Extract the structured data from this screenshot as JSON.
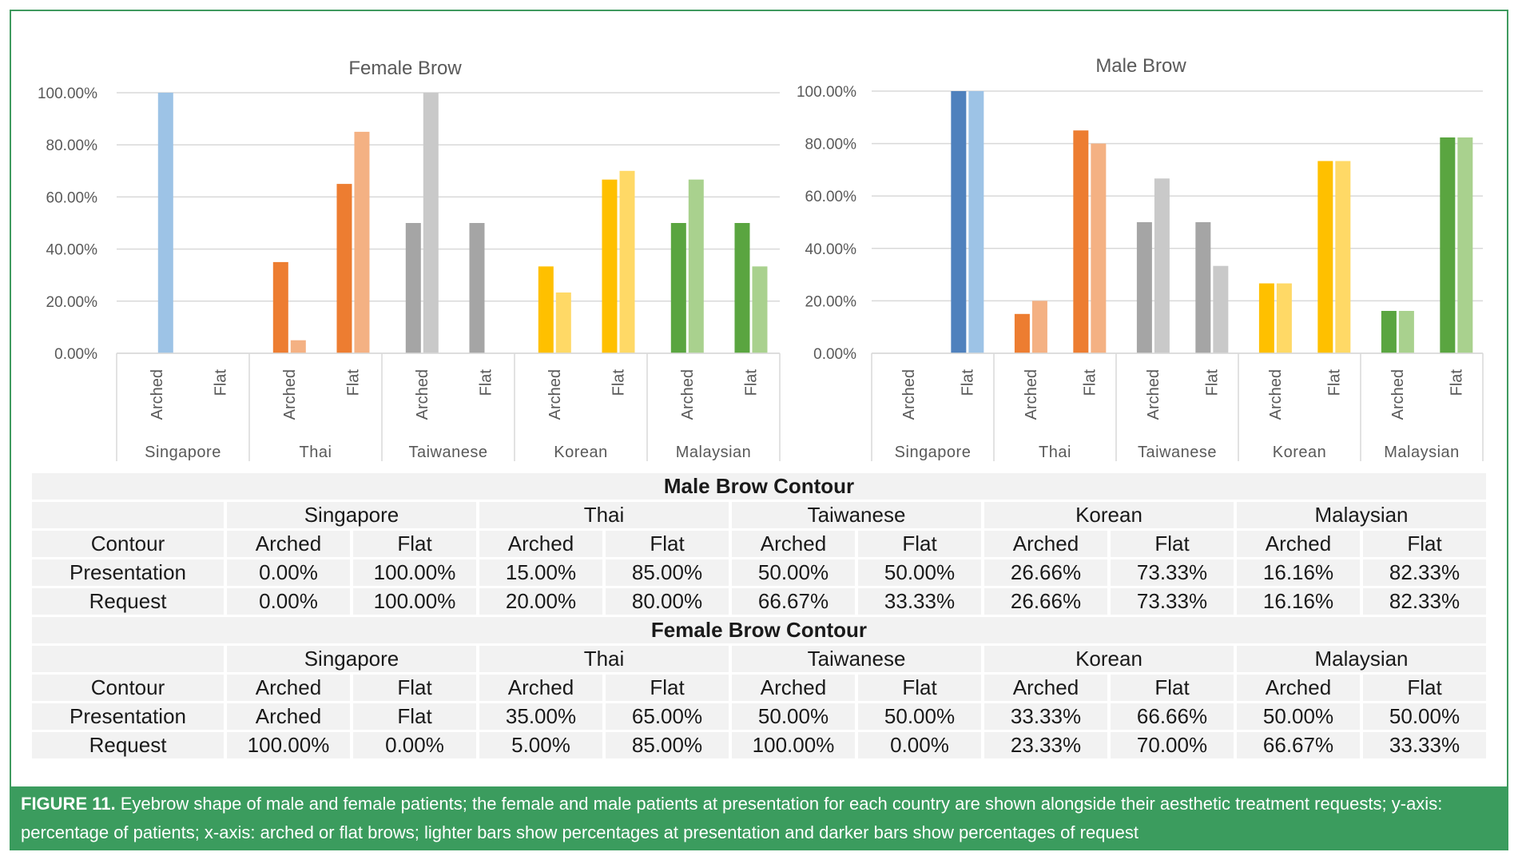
{
  "chart_data": [
    {
      "type": "bar",
      "title": "Female Brow",
      "ylim": [
        0,
        100
      ],
      "yticks": [
        "0.00%",
        "20.00%",
        "40.00%",
        "60.00%",
        "80.00%",
        "100.00%"
      ],
      "groups": [
        "Singapore",
        "Thai",
        "Taiwanese",
        "Korean",
        "Malaysian"
      ],
      "categories": [
        "Arched",
        "Flat"
      ],
      "series_order": [
        "Presentation",
        "Request"
      ],
      "bars": [
        {
          "group": "Singapore",
          "category": "Arched",
          "values": [
            null,
            100
          ]
        },
        {
          "group": "Singapore",
          "category": "Flat",
          "values": [
            null,
            null
          ]
        },
        {
          "group": "Thai",
          "category": "Arched",
          "values": [
            35,
            5
          ]
        },
        {
          "group": "Thai",
          "category": "Flat",
          "values": [
            65,
            85
          ]
        },
        {
          "group": "Taiwanese",
          "category": "Arched",
          "values": [
            50,
            100
          ]
        },
        {
          "group": "Taiwanese",
          "category": "Flat",
          "values": [
            50,
            null
          ]
        },
        {
          "group": "Korean",
          "category": "Arched",
          "values": [
            33.33,
            23.33
          ]
        },
        {
          "group": "Korean",
          "category": "Flat",
          "values": [
            66.66,
            70
          ]
        },
        {
          "group": "Malaysian",
          "category": "Arched",
          "values": [
            50,
            66.67
          ]
        },
        {
          "group": "Malaysian",
          "category": "Flat",
          "values": [
            50,
            33.33
          ]
        }
      ],
      "grid": true
    },
    {
      "type": "bar",
      "title": "Male Brow",
      "ylim": [
        0,
        100
      ],
      "yticks": [
        "0.00%",
        "20.00%",
        "40.00%",
        "60.00%",
        "80.00%",
        "100.00%"
      ],
      "groups": [
        "Singapore",
        "Thai",
        "Taiwanese",
        "Korean",
        "Malaysian"
      ],
      "categories": [
        "Arched",
        "Flat"
      ],
      "series_order": [
        "Presentation",
        "Request"
      ],
      "bars": [
        {
          "group": "Singapore",
          "category": "Arched",
          "values": [
            null,
            null
          ]
        },
        {
          "group": "Singapore",
          "category": "Flat",
          "values": [
            100,
            100
          ]
        },
        {
          "group": "Thai",
          "category": "Arched",
          "values": [
            15,
            20
          ]
        },
        {
          "group": "Thai",
          "category": "Flat",
          "values": [
            85,
            80
          ]
        },
        {
          "group": "Taiwanese",
          "category": "Arched",
          "values": [
            50,
            66.67
          ]
        },
        {
          "group": "Taiwanese",
          "category": "Flat",
          "values": [
            50,
            33.33
          ]
        },
        {
          "group": "Korean",
          "category": "Arched",
          "values": [
            26.66,
            26.66
          ]
        },
        {
          "group": "Korean",
          "category": "Flat",
          "values": [
            73.33,
            73.33
          ]
        },
        {
          "group": "Malaysian",
          "category": "Arched",
          "values": [
            16.16,
            16.16
          ]
        },
        {
          "group": "Malaysian",
          "category": "Flat",
          "values": [
            82.33,
            82.33
          ]
        }
      ],
      "grid": true
    }
  ],
  "colors": {
    "Singapore": [
      "#4f81bd",
      "#9dc3e6"
    ],
    "Thai": [
      "#ed7d31",
      "#f4b183"
    ],
    "Taiwanese": [
      "#a5a5a5",
      "#c9c9c9"
    ],
    "Korean": [
      "#ffc000",
      "#ffd966"
    ],
    "Malaysian": [
      "#5aa540",
      "#a9d18e"
    ],
    "frame": "#3f9a5f",
    "caption_bg": "#3b9c5e"
  },
  "table": {
    "male": {
      "heading": "Male Brow Contour",
      "countries": [
        "Singapore",
        "Thai",
        "Taiwanese",
        "Korean",
        "Malaysian"
      ],
      "header_row": [
        "Contour",
        "Arched",
        "Flat",
        "Arched",
        "Flat",
        "Arched",
        "Flat",
        "Arched",
        "Flat",
        "Arched",
        "Flat"
      ],
      "rows": [
        [
          "Presentation",
          "0.00%",
          "100.00%",
          "15.00%",
          "85.00%",
          "50.00%",
          "50.00%",
          "26.66%",
          "73.33%",
          "16.16%",
          "82.33%"
        ],
        [
          "Request",
          "0.00%",
          "100.00%",
          "20.00%",
          "80.00%",
          "66.67%",
          "33.33%",
          "26.66%",
          "73.33%",
          "16.16%",
          "82.33%"
        ]
      ]
    },
    "female": {
      "heading": "Female Brow Contour",
      "countries": [
        "Singapore",
        "Thai",
        "Taiwanese",
        "Korean",
        "Malaysian"
      ],
      "header_row": [
        "Contour",
        "Arched",
        "Flat",
        "Arched",
        "Flat",
        "Arched",
        "Flat",
        "Arched",
        "Flat",
        "Arched",
        "Flat"
      ],
      "rows": [
        [
          "Presentation",
          "Arched",
          "Flat",
          "35.00%",
          "65.00%",
          "50.00%",
          "50.00%",
          "33.33%",
          "66.66%",
          "50.00%",
          "50.00%"
        ],
        [
          "Request",
          "100.00%",
          "0.00%",
          "5.00%",
          "85.00%",
          "100.00%",
          "0.00%",
          "23.33%",
          "70.00%",
          "66.67%",
          "33.33%"
        ]
      ]
    }
  },
  "caption": {
    "label": "FIGURE 11.",
    "text": " Eyebrow shape of male and female patients; the female and male patients at presentation for each country are shown alongside their aesthetic treatment requests; y-axis: percentage of patients; x-axis: arched or flat brows; lighter bars show percentages at presentation and darker bars show percentages of request"
  }
}
